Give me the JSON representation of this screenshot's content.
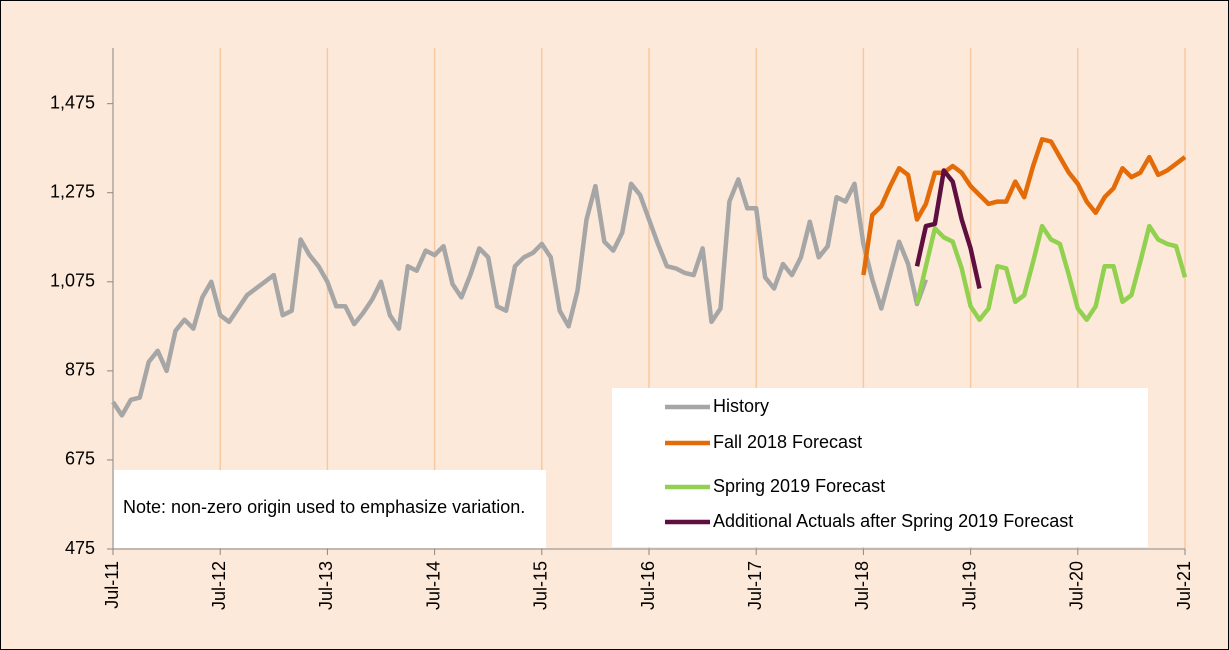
{
  "chart_data": {
    "type": "line",
    "note": "Note: non-zero origin used to emphasize variation.",
    "categories": [
      "Jul-11",
      null,
      null,
      null,
      null,
      null,
      null,
      null,
      null,
      null,
      null,
      null,
      "Jul-12",
      null,
      null,
      null,
      null,
      null,
      null,
      null,
      null,
      null,
      null,
      null,
      "Jul-13",
      null,
      null,
      null,
      null,
      null,
      null,
      null,
      null,
      null,
      null,
      null,
      "Jul-14",
      null,
      null,
      null,
      null,
      null,
      null,
      null,
      null,
      null,
      null,
      null,
      "Jul-15",
      null,
      null,
      null,
      null,
      null,
      null,
      null,
      null,
      null,
      null,
      null,
      "Jul-16",
      null,
      null,
      null,
      null,
      null,
      null,
      null,
      null,
      null,
      null,
      null,
      "Jul-17",
      null,
      null,
      null,
      null,
      null,
      null,
      null,
      null,
      null,
      null,
      null,
      "Jul-18",
      null,
      null,
      null,
      null,
      null,
      null,
      null,
      null,
      null,
      null,
      null,
      "Jul-19",
      null,
      null,
      null,
      null,
      null,
      null,
      null,
      null,
      null,
      null,
      null,
      "Jul-20",
      null,
      null,
      null,
      null,
      null,
      null,
      null,
      null,
      null,
      null,
      null,
      "Jul-21"
    ],
    "series": [
      {
        "name": "History",
        "color": "#a6a6a6",
        "values": [
          805,
          775,
          810,
          815,
          895,
          920,
          875,
          965,
          990,
          970,
          1040,
          1075,
          1000,
          985,
          1015,
          1045,
          1060,
          1075,
          1090,
          1000,
          1010,
          1170,
          1135,
          1110,
          1075,
          1020,
          1020,
          980,
          1005,
          1035,
          1075,
          1000,
          970,
          1110,
          1100,
          1145,
          1135,
          1155,
          1070,
          1040,
          1090,
          1150,
          1130,
          1020,
          1010,
          1110,
          1130,
          1140,
          1160,
          1130,
          1010,
          975,
          1055,
          1215,
          1290,
          1165,
          1145,
          1185,
          1295,
          1270,
          1215,
          1160,
          1110,
          1105,
          1095,
          1090,
          1150,
          985,
          1015,
          1255,
          1305,
          1240,
          1240,
          1085,
          1060,
          1115,
          1090,
          1130,
          1210,
          1130,
          1155,
          1265,
          1255,
          1295,
          1160,
          1080,
          1015,
          1090,
          1165,
          1115,
          1025,
          1080,
          null,
          null,
          null,
          null,
          null,
          null,
          null,
          null,
          null,
          null,
          null,
          null,
          null,
          null,
          null,
          null,
          null,
          null,
          null,
          null,
          null,
          null,
          null,
          null,
          null,
          null,
          null,
          null,
          null
        ]
      },
      {
        "name": "Fall 2018 Forecast",
        "color": "#e36c09",
        "values": [
          null,
          null,
          null,
          null,
          null,
          null,
          null,
          null,
          null,
          null,
          null,
          null,
          null,
          null,
          null,
          null,
          null,
          null,
          null,
          null,
          null,
          null,
          null,
          null,
          null,
          null,
          null,
          null,
          null,
          null,
          null,
          null,
          null,
          null,
          null,
          null,
          null,
          null,
          null,
          null,
          null,
          null,
          null,
          null,
          null,
          null,
          null,
          null,
          null,
          null,
          null,
          null,
          null,
          null,
          null,
          null,
          null,
          null,
          null,
          null,
          null,
          null,
          null,
          null,
          null,
          null,
          null,
          null,
          null,
          null,
          null,
          null,
          null,
          null,
          null,
          null,
          null,
          null,
          null,
          null,
          null,
          null,
          null,
          null,
          1090,
          1225,
          1245,
          1290,
          1330,
          1315,
          1215,
          1250,
          1320,
          1320,
          1335,
          1320,
          1290,
          1270,
          1250,
          1255,
          1255,
          1300,
          1265,
          1335,
          1395,
          1390,
          1355,
          1320,
          1295,
          1255,
          1230,
          1265,
          1285,
          1330,
          1310,
          1320,
          1355,
          1315,
          1325,
          1340,
          1355
        ]
      },
      {
        "name": "Spring 2019 Forecast",
        "color": "#92d050",
        "values": [
          null,
          null,
          null,
          null,
          null,
          null,
          null,
          null,
          null,
          null,
          null,
          null,
          null,
          null,
          null,
          null,
          null,
          null,
          null,
          null,
          null,
          null,
          null,
          null,
          null,
          null,
          null,
          null,
          null,
          null,
          null,
          null,
          null,
          null,
          null,
          null,
          null,
          null,
          null,
          null,
          null,
          null,
          null,
          null,
          null,
          null,
          null,
          null,
          null,
          null,
          null,
          null,
          null,
          null,
          null,
          null,
          null,
          null,
          null,
          null,
          null,
          null,
          null,
          null,
          null,
          null,
          null,
          null,
          null,
          null,
          null,
          null,
          null,
          null,
          null,
          null,
          null,
          null,
          null,
          null,
          null,
          null,
          null,
          null,
          null,
          null,
          null,
          null,
          null,
          null,
          1025,
          1110,
          1195,
          1175,
          1165,
          1105,
          1020,
          990,
          1015,
          1110,
          1105,
          1030,
          1045,
          1120,
          1200,
          1170,
          1160,
          1090,
          1015,
          990,
          1020,
          1110,
          1110,
          1030,
          1045,
          1120,
          1200,
          1170,
          1160,
          1155,
          1085
        ]
      },
      {
        "name": "Additional Actuals after Spring 2019 Forecast",
        "color": "#5f0f3f",
        "values": [
          null,
          null,
          null,
          null,
          null,
          null,
          null,
          null,
          null,
          null,
          null,
          null,
          null,
          null,
          null,
          null,
          null,
          null,
          null,
          null,
          null,
          null,
          null,
          null,
          null,
          null,
          null,
          null,
          null,
          null,
          null,
          null,
          null,
          null,
          null,
          null,
          null,
          null,
          null,
          null,
          null,
          null,
          null,
          null,
          null,
          null,
          null,
          null,
          null,
          null,
          null,
          null,
          null,
          null,
          null,
          null,
          null,
          null,
          null,
          null,
          null,
          null,
          null,
          null,
          null,
          null,
          null,
          null,
          null,
          null,
          null,
          null,
          null,
          null,
          null,
          null,
          null,
          null,
          null,
          null,
          null,
          null,
          null,
          null,
          null,
          null,
          null,
          null,
          null,
          null,
          1110,
          1200,
          1205,
          1325,
          1300,
          1215,
          1150,
          1060,
          null,
          null,
          null,
          null,
          null,
          null,
          null,
          null,
          null,
          null,
          null,
          null,
          null,
          null,
          null,
          null,
          null,
          null,
          null,
          null,
          null,
          null,
          null
        ]
      }
    ],
    "ylim": [
      475,
      1600
    ],
    "yticks": [
      475,
      675,
      875,
      {
        "value": 1075,
        "label": "1,075"
      },
      {
        "value": 1275,
        "label": "1,275"
      },
      {
        "value": 1475,
        "label": "1,475"
      }
    ],
    "grid": true,
    "legend": "lower right"
  }
}
